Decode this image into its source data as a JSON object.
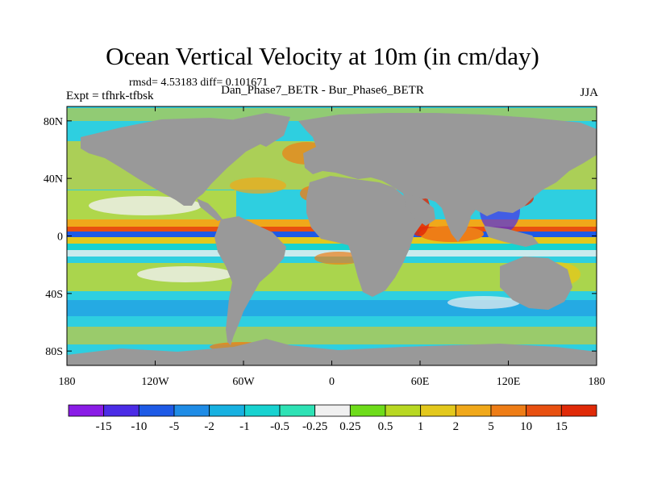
{
  "title": "Ocean Vertical Velocity at 10m (in cm/day)",
  "stats_line": "rmsd= 4.53183  diff= 0.101671",
  "expt_label": "Expt = tfhrk-tfbsk",
  "subtitle": "Dan_Phase7_BETR - Bur_Phase6_BETR",
  "season": "JJA",
  "map": {
    "lat_range": [
      -90,
      90
    ],
    "lon_range": [
      -180,
      180
    ],
    "lat_ticks": [
      {
        "value": 80,
        "label": "80N"
      },
      {
        "value": 40,
        "label": "40N"
      },
      {
        "value": 0,
        "label": "0"
      },
      {
        "value": -40,
        "label": "40S"
      },
      {
        "value": -80,
        "label": "80S"
      }
    ],
    "lon_ticks": [
      {
        "value": -180,
        "label": "180"
      },
      {
        "value": -120,
        "label": "120W"
      },
      {
        "value": -60,
        "label": "60W"
      },
      {
        "value": 0,
        "label": "0"
      },
      {
        "value": 60,
        "label": "60E"
      },
      {
        "value": 120,
        "label": "120E"
      },
      {
        "value": 180,
        "label": "180"
      }
    ],
    "land_color": "#999999"
  },
  "colorbar": {
    "colors": [
      "#8a1ce6",
      "#4b2ce6",
      "#1e5ae6",
      "#1f8ce6",
      "#17b1e1",
      "#18d2d0",
      "#2ee2b5",
      "#f0f0f0",
      "#6edc1a",
      "#b8d822",
      "#e3c81c",
      "#f0a81a",
      "#ee7d16",
      "#e85010",
      "#e02a08"
    ],
    "labels": [
      "-15",
      "-10",
      "-5",
      "-2",
      "-1",
      "-0.5",
      "-0.25",
      "0.25",
      "0.5",
      "1",
      "2",
      "5",
      "10",
      "15"
    ]
  }
}
